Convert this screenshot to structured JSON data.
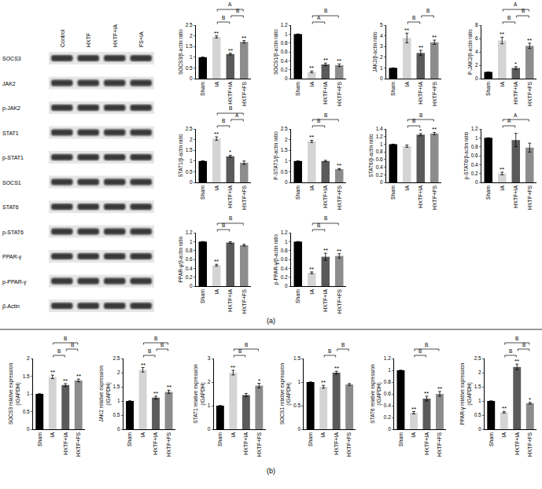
{
  "chart_data": [
    {
      "type": "bar",
      "y_label": "SOCS3/β-actin ratio",
      "categories": [
        "Sham",
        "IA",
        "HXTF+IA",
        "HXTF+FS"
      ],
      "values": [
        1,
        1.95,
        1.15,
        1.72
      ],
      "errors": [
        0,
        0.05,
        0.04,
        0.06
      ],
      "colors": [
        "#000000",
        "#d4d4d4",
        "#5a5a5a",
        "#8c8c8c"
      ],
      "significance": [
        null,
        "**",
        "**",
        "**"
      ],
      "comparisons": [
        {
          "from": "IA",
          "to": "HXTF+IA",
          "label": "B"
        },
        {
          "from": "HXTF+IA",
          "to": "HXTF+FS",
          "label": "B"
        },
        {
          "from": "IA",
          "to": "HXTF+FS",
          "label": "A"
        }
      ],
      "ylim": [
        0,
        2.5
      ],
      "yticks": [
        0,
        0.5,
        1,
        1.5,
        2,
        2.5
      ]
    },
    {
      "type": "bar",
      "y_label": "SOCS1/β-actin ratio",
      "categories": [
        "Sham",
        "IA",
        "HXTF+IA",
        "HXTF+FS"
      ],
      "values": [
        1,
        0.15,
        0.32,
        0.3
      ],
      "errors": [
        0,
        0.02,
        0.03,
        0.03
      ],
      "colors": [
        "#000000",
        "#d4d4d4",
        "#5a5a5a",
        "#8c8c8c"
      ],
      "significance": [
        null,
        "**",
        "**",
        "**"
      ],
      "comparisons": [
        {
          "from": "IA",
          "to": "HXTF+IA",
          "label": "A"
        },
        {
          "from": "IA",
          "to": "HXTF+FS",
          "label": "B"
        }
      ],
      "ylim": [
        0,
        1.2
      ],
      "yticks": [
        0,
        0.2,
        0.4,
        0.6,
        0.8,
        1,
        1.2
      ]
    },
    {
      "type": "bar",
      "y_label": "JAK2/β-actin ratio",
      "categories": [
        "Sham",
        "IA",
        "HXTF+IA",
        "HXTF+FS"
      ],
      "values": [
        1,
        3.8,
        2.4,
        3.4
      ],
      "errors": [
        0,
        0.45,
        0.25,
        0.2
      ],
      "colors": [
        "#000000",
        "#d4d4d4",
        "#5a5a5a",
        "#8c8c8c"
      ],
      "significance": [
        null,
        "**",
        "**",
        "**"
      ],
      "comparisons": [
        {
          "from": "IA",
          "to": "HXTF+IA",
          "label": "B"
        },
        {
          "from": "HXTF+IA",
          "to": "HXTF+FS",
          "label": "B"
        }
      ],
      "ylim": [
        0,
        5
      ],
      "yticks": [
        0,
        1,
        2,
        3,
        4,
        5
      ]
    },
    {
      "type": "bar",
      "y_label": "P-JAK2/β-actin ratio",
      "categories": [
        "Sham",
        "IA",
        "HXTF+IA",
        "HXTF+FS"
      ],
      "values": [
        1,
        5.7,
        1.6,
        4.9
      ],
      "errors": [
        0,
        0.5,
        0.2,
        0.4
      ],
      "colors": [
        "#000000",
        "#d4d4d4",
        "#5a5a5a",
        "#8c8c8c"
      ],
      "significance": [
        null,
        "**",
        "*",
        "**"
      ],
      "comparisons": [
        {
          "from": "IA",
          "to": "HXTF+IA",
          "label": "B"
        },
        {
          "from": "HXTF+IA",
          "to": "HXTF+FS",
          "label": "B"
        },
        {
          "from": "IA",
          "to": "HXTF+FS",
          "label": "A"
        }
      ],
      "ylim": [
        0,
        8
      ],
      "yticks": [
        0,
        2,
        4,
        6,
        8
      ]
    },
    {
      "type": "bar",
      "y_label": "STAT1/β-actin ratio",
      "categories": [
        "Sham",
        "IA",
        "HXTF+IA",
        "HXTF+FS"
      ],
      "values": [
        1,
        2.05,
        1.22,
        0.92
      ],
      "errors": [
        0,
        0.08,
        0.05,
        0.08
      ],
      "colors": [
        "#000000",
        "#d4d4d4",
        "#5a5a5a",
        "#8c8c8c"
      ],
      "significance": [
        null,
        "**",
        "*",
        null
      ],
      "comparisons": [
        {
          "from": "IA",
          "to": "HXTF+IA",
          "label": "B"
        },
        {
          "from": "HXTF+IA",
          "to": "HXTF+FS",
          "label": "A"
        },
        {
          "from": "IA",
          "to": "HXTF+FS",
          "label": "B"
        }
      ],
      "ylim": [
        0,
        2.5
      ],
      "yticks": [
        0,
        0.5,
        1,
        1.5,
        2,
        2.5
      ]
    },
    {
      "type": "bar",
      "y_label": "P-STAT1/β-actin ratio",
      "categories": [
        "Sham",
        "IA",
        "HXTF+IA",
        "HXTF+FS"
      ],
      "values": [
        1,
        1.92,
        1.0,
        0.62
      ],
      "errors": [
        0,
        0.05,
        0.03,
        0.03
      ],
      "colors": [
        "#000000",
        "#d4d4d4",
        "#5a5a5a",
        "#8c8c8c"
      ],
      "significance": [
        null,
        "**",
        null,
        "**"
      ],
      "comparisons": [
        {
          "from": "IA",
          "to": "HXTF+IA",
          "label": "B"
        },
        {
          "from": "IA",
          "to": "HXTF+FS",
          "label": "B"
        }
      ],
      "ylim": [
        0,
        2.5
      ],
      "yticks": [
        0,
        0.5,
        1,
        1.5,
        2,
        2.5
      ]
    },
    {
      "type": "bar",
      "y_label": "STAT6/β-actin ratio",
      "categories": [
        "Sham",
        "IA",
        "HXTF+IA",
        "HXTF+FS"
      ],
      "values": [
        1,
        0.95,
        1.25,
        1.28
      ],
      "errors": [
        0,
        0.03,
        0.03,
        0.03
      ],
      "colors": [
        "#000000",
        "#d4d4d4",
        "#5a5a5a",
        "#8c8c8c"
      ],
      "significance": [
        null,
        null,
        "*",
        "**"
      ],
      "comparisons": [
        {
          "from": "IA",
          "to": "HXTF+IA",
          "label": "B"
        },
        {
          "from": "IA",
          "to": "HXTF+FS",
          "label": "B"
        }
      ],
      "ylim": [
        0,
        1.4
      ],
      "yticks": [
        0,
        0.2,
        0.4,
        0.6,
        0.8,
        1,
        1.2,
        1.4
      ]
    },
    {
      "type": "bar",
      "y_label": "p-STAT6/β-actin ratio",
      "categories": [
        "Sham",
        "IA",
        "HXTF+IA",
        "HXTF+FS"
      ],
      "values": [
        1,
        0.2,
        0.95,
        0.78
      ],
      "errors": [
        0,
        0.03,
        0.15,
        0.1
      ],
      "colors": [
        "#000000",
        "#d4d4d4",
        "#5a5a5a",
        "#8c8c8c"
      ],
      "significance": [
        null,
        "**",
        null,
        null
      ],
      "comparisons": [
        {
          "from": "IA",
          "to": "HXTF+IA",
          "label": "A"
        },
        {
          "from": "IA",
          "to": "HXTF+FS",
          "label": "A"
        }
      ],
      "ylim": [
        0,
        1.2
      ],
      "yticks": [
        0,
        0.2,
        0.4,
        0.6,
        0.8,
        1,
        1.2
      ]
    },
    {
      "type": "bar",
      "y_label": "PPAR-γ/β-actin ratio",
      "categories": [
        "Sham",
        "IA",
        "HXTF+IA",
        "HXTF+FS"
      ],
      "values": [
        1,
        0.47,
        0.98,
        0.92
      ],
      "errors": [
        0,
        0.02,
        0.02,
        0.02
      ],
      "colors": [
        "#000000",
        "#d4d4d4",
        "#5a5a5a",
        "#8c8c8c"
      ],
      "significance": [
        null,
        "**",
        null,
        null
      ],
      "comparisons": [
        {
          "from": "IA",
          "to": "HXTF+IA",
          "label": "B"
        },
        {
          "from": "IA",
          "to": "HXTF+FS",
          "label": "B"
        }
      ],
      "ylim": [
        0,
        1.2
      ],
      "yticks": [
        0,
        0.2,
        0.4,
        0.6,
        0.8,
        1,
        1.2
      ]
    },
    {
      "type": "bar",
      "y_label": "p-PPAR-γ/β-actin ratio",
      "categories": [
        "Sham",
        "IA",
        "HXTF+IA",
        "HXTF+FS"
      ],
      "values": [
        1,
        0.3,
        0.66,
        0.68
      ],
      "errors": [
        0,
        0.02,
        0.08,
        0.05
      ],
      "colors": [
        "#000000",
        "#d4d4d4",
        "#5a5a5a",
        "#8c8c8c"
      ],
      "significance": [
        null,
        "**",
        "**",
        "**"
      ],
      "comparisons": [
        {
          "from": "IA",
          "to": "HXTF+IA",
          "label": "B"
        },
        {
          "from": "IA",
          "to": "HXTF+FS",
          "label": "B"
        }
      ],
      "ylim": [
        0,
        1.2
      ],
      "yticks": [
        0,
        0.2,
        0.4,
        0.6,
        0.8,
        1,
        1.2
      ]
    },
    {
      "type": "bar",
      "y_label": "SOCS3 relative expression\n(/GAPDH)",
      "categories": [
        "Sham",
        "IA",
        "HXTF+IA",
        "HXTF+FS"
      ],
      "values": [
        1,
        1.48,
        1.25,
        1.38
      ],
      "errors": [
        0,
        0.05,
        0.04,
        0.04
      ],
      "colors": [
        "#000000",
        "#d4d4d4",
        "#5a5a5a",
        "#8c8c8c"
      ],
      "significance": [
        null,
        "**",
        "**",
        "**"
      ],
      "comparisons": [
        {
          "from": "IA",
          "to": "HXTF+IA",
          "label": "B"
        },
        {
          "from": "IA",
          "to": "HXTF+FS",
          "label": "B"
        },
        {
          "from": "HXTF+IA",
          "to": "HXTF+FS",
          "label": "B"
        }
      ],
      "ylim": [
        0,
        2
      ],
      "yticks": [
        0,
        0.5,
        1,
        1.5,
        2
      ]
    },
    {
      "type": "bar",
      "y_label": "JAK2 relative expression\n(/GAPDH)",
      "categories": [
        "Sham",
        "IA",
        "HXTF+IA",
        "HXTF+FS"
      ],
      "values": [
        1,
        2.1,
        1.12,
        1.32
      ],
      "errors": [
        0,
        0.08,
        0.05,
        0.06
      ],
      "colors": [
        "#000000",
        "#d4d4d4",
        "#5a5a5a",
        "#8c8c8c"
      ],
      "significance": [
        null,
        "**",
        "**",
        "**"
      ],
      "comparisons": [
        {
          "from": "IA",
          "to": "HXTF+IA",
          "label": "B"
        },
        {
          "from": "IA",
          "to": "HXTF+FS",
          "label": "B"
        },
        {
          "from": "HXTF+IA",
          "to": "HXTF+FS",
          "label": "B"
        }
      ],
      "ylim": [
        0,
        2.5
      ],
      "yticks": [
        0,
        0.5,
        1,
        1.5,
        2,
        2.5
      ]
    },
    {
      "type": "bar",
      "y_label": "STAT1 relative expression\n(/GAPDH)",
      "categories": [
        "Sham",
        "IA",
        "HXTF+IA",
        "HXTF+FS"
      ],
      "values": [
        1,
        2.4,
        1.45,
        1.85
      ],
      "errors": [
        0,
        0.1,
        0.07,
        0.1
      ],
      "colors": [
        "#000000",
        "#d4d4d4",
        "#5a5a5a",
        "#8c8c8c"
      ],
      "significance": [
        null,
        "**",
        null,
        "*"
      ],
      "comparisons": [
        {
          "from": "IA",
          "to": "HXTF+IA",
          "label": "B"
        },
        {
          "from": "IA",
          "to": "HXTF+FS",
          "label": "B"
        }
      ],
      "ylim": [
        0,
        3
      ],
      "yticks": [
        0,
        1,
        2,
        3
      ]
    },
    {
      "type": "bar",
      "y_label": "SOCS1 relative expression\n(/GAPDH)",
      "categories": [
        "Sham",
        "IA",
        "HXTF+IA",
        "HXTF+FS"
      ],
      "values": [
        1,
        0.9,
        1.2,
        0.95
      ],
      "errors": [
        0,
        0.03,
        0.03,
        0.02
      ],
      "colors": [
        "#000000",
        "#d4d4d4",
        "#5a5a5a",
        "#8c8c8c"
      ],
      "significance": [
        null,
        "**",
        "**",
        null
      ],
      "comparisons": [
        {
          "from": "IA",
          "to": "HXTF+IA",
          "label": "B"
        },
        {
          "from": "HXTF+IA",
          "to": "HXTF+FS",
          "label": "B"
        }
      ],
      "ylim": [
        0,
        1.5
      ],
      "yticks": [
        0,
        0.5,
        1,
        1.5
      ]
    },
    {
      "type": "bar",
      "y_label": "STAT6 relative expression\n(/GAPDH)",
      "categories": [
        "Sham",
        "IA",
        "HXTF+IA",
        "HXTF+FS"
      ],
      "values": [
        1,
        0.28,
        0.52,
        0.6
      ],
      "errors": [
        0,
        0.02,
        0.04,
        0.04
      ],
      "colors": [
        "#000000",
        "#d4d4d4",
        "#5a5a5a",
        "#8c8c8c"
      ],
      "significance": [
        null,
        "**",
        "**",
        "**"
      ],
      "comparisons": [
        {
          "from": "IA",
          "to": "HXTF+IA",
          "label": "B"
        },
        {
          "from": "IA",
          "to": "HXTF+FS",
          "label": "B"
        }
      ],
      "ylim": [
        0,
        1.2
      ],
      "yticks": [
        0,
        0.2,
        0.4,
        0.6,
        0.8,
        1,
        1.2
      ]
    },
    {
      "type": "bar",
      "y_label": "PPAR-γ relative expression\n(/GAPDH)",
      "categories": [
        "Sham",
        "IA",
        "HXTF+IA",
        "HXTF+FS"
      ],
      "values": [
        1,
        0.6,
        2.2,
        0.92
      ],
      "errors": [
        0,
        0.03,
        0.1,
        0.03
      ],
      "colors": [
        "#000000",
        "#d4d4d4",
        "#5a5a5a",
        "#8c8c8c"
      ],
      "significance": [
        null,
        "**",
        "**",
        "*"
      ],
      "comparisons": [
        {
          "from": "IA",
          "to": "HXTF+IA",
          "label": "B"
        },
        {
          "from": "IA",
          "to": "HXTF+FS",
          "label": "B"
        },
        {
          "from": "HXTF+IA",
          "to": "HXTF+FS",
          "label": "B"
        }
      ],
      "ylim": [
        0,
        2.5
      ],
      "yticks": [
        0,
        0.5,
        1,
        1.5,
        2,
        2.5
      ]
    }
  ],
  "blot": {
    "lanes": [
      "Control",
      "HXTF",
      "HXTF+IA",
      "FS+IA"
    ],
    "rows": [
      "SOCS3",
      "JAK2",
      "p-JAK2",
      "STAT1",
      "p-STAT1",
      "SOCS1",
      "STAT6",
      "p-STAT6",
      "PPAR-γ",
      "p-PPAR-γ",
      "β-Actin"
    ]
  },
  "panel_labels": [
    "(a)",
    "(b)"
  ]
}
